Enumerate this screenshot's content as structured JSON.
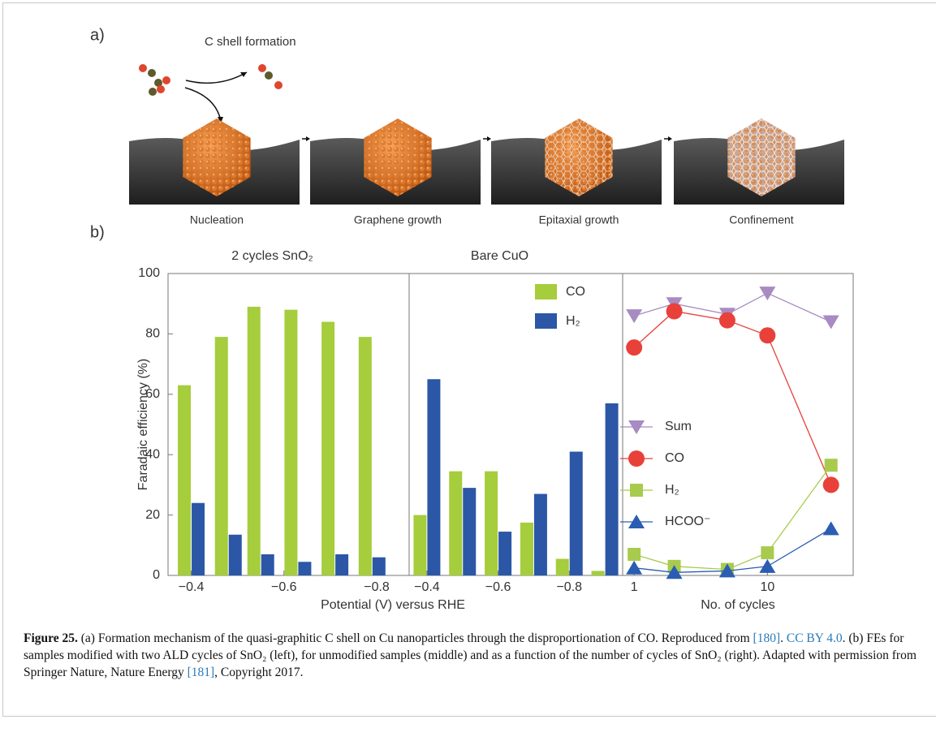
{
  "panel_a": {
    "label": "a)",
    "title": "C shell formation",
    "steps": [
      "Nucleation",
      "Graphene growth",
      "Epitaxial growth",
      "Confinement"
    ]
  },
  "panel_b": {
    "label": "b)"
  },
  "chart_data": [
    {
      "type": "bar",
      "title": "2 cycles SnO₂",
      "xlabel": "Potential (V) versus RHE",
      "ylabel": "Faradaic efficiency (%)",
      "x": [
        -0.4,
        -0.48,
        -0.55,
        -0.63,
        -0.71,
        -0.79
      ],
      "xlim": [
        -0.35,
        -0.87
      ],
      "xticks": [
        {
          "value": -0.4,
          "label": "−0.4"
        },
        {
          "value": -0.6,
          "label": "−0.6"
        },
        {
          "value": -0.8,
          "label": "−0.8"
        }
      ],
      "ylim": [
        0,
        100
      ],
      "yticks": [
        0,
        20,
        40,
        60,
        80,
        100
      ],
      "legend": false,
      "series": [
        {
          "name": "CO",
          "color": "#a5cd3c",
          "values": [
            63,
            79,
            89,
            88,
            84,
            79
          ]
        },
        {
          "name": "H₂",
          "color": "#2b57a6",
          "values": [
            24,
            13.5,
            7,
            4.5,
            7,
            6
          ]
        }
      ]
    },
    {
      "type": "bar",
      "title": "Bare CuO",
      "x": [
        -0.4,
        -0.5,
        -0.6,
        -0.7,
        -0.8,
        -0.9
      ],
      "xlim": [
        -0.35,
        -0.95
      ],
      "xticks": [
        {
          "value": -0.4,
          "label": "−0.4"
        },
        {
          "value": -0.6,
          "label": "−0.6"
        },
        {
          "value": -0.8,
          "label": "−0.8"
        }
      ],
      "ylim": [
        0,
        100
      ],
      "legend": "upper right",
      "series": [
        {
          "name": "CO",
          "color": "#a5cd3c",
          "values": [
            20,
            34.5,
            34.5,
            17.5,
            5.5,
            1.5
          ]
        },
        {
          "name": "H₂",
          "color": "#2b57a6",
          "values": [
            65,
            29,
            14.5,
            27,
            41,
            57
          ]
        }
      ]
    },
    {
      "type": "line",
      "xlabel": "No. of cycles",
      "xscale": "log",
      "x": [
        1,
        2,
        5,
        10,
        30
      ],
      "xlim": [
        0.82,
        44
      ],
      "xticks": [
        1,
        10
      ],
      "ylim": [
        0,
        100
      ],
      "legend": "center",
      "series": [
        {
          "name": "Sum",
          "color": "#a88bc2",
          "marker": "triangle-down",
          "values": [
            86,
            90,
            86.5,
            93.5,
            84
          ]
        },
        {
          "name": "CO",
          "color": "#e8413a",
          "marker": "circle",
          "values": [
            75.5,
            87.5,
            84.5,
            79.5,
            30
          ]
        },
        {
          "name": "H₂",
          "color": "#a8cb4e",
          "marker": "square",
          "values": [
            7,
            3,
            2,
            7.5,
            36.5
          ]
        },
        {
          "name": "HCOO⁻",
          "color": "#2b5db2",
          "marker": "triangle-up",
          "values": [
            2.5,
            1,
            1.5,
            3,
            15.5
          ]
        }
      ]
    }
  ],
  "caption": {
    "label": "Figure 25.",
    "text_1": " (a) Formation mechanism of the quasi-graphitic C shell on Cu nanoparticles through the disproportionation of CO. Reproduced from ",
    "ref_1": "[180]",
    "text_2": ". ",
    "license": "CC BY 4.0",
    "text_3": ". (b) FEs for samples modified with two ALD cycles of SnO₂ (left), for unmodified samples (middle) and as a function of the number of cycles of SnO₂ (right). Adapted with permission from Springer Nature, Nature Energy ",
    "ref_2": "[181]",
    "text_4": ", Copyright 2017."
  }
}
